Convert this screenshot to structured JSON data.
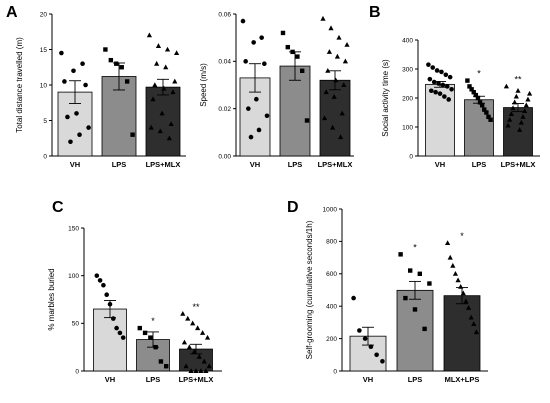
{
  "chart_data": [
    {
      "panel": "A",
      "type": "bar",
      "ylabel": "Total distance travelled (m)",
      "ylim": [
        0,
        20
      ],
      "yticks": [
        0,
        5,
        10,
        15,
        20
      ],
      "categories": [
        "VH",
        "LPS",
        "LPS+MLX"
      ],
      "values": [
        9.0,
        11.2,
        9.7
      ],
      "errors": [
        1.6,
        1.9,
        1.1
      ],
      "significance": [
        "",
        "",
        ""
      ],
      "bar_colors": [
        "#d9d9d9",
        "#8c8c8c",
        "#2e2e2e"
      ],
      "points": [
        [
          14.5,
          13.0,
          12.0,
          10.5,
          10.0,
          6.0,
          5.5,
          4.0,
          3.0,
          2.0
        ],
        [
          15.0,
          13.5,
          13.0,
          12.5,
          10.5,
          3.0
        ],
        [
          17.0,
          15.5,
          15.0,
          14.5,
          13.0,
          12.5,
          10.5,
          10.0,
          9.5,
          9.0,
          8.0,
          6.0,
          4.5,
          4.0,
          3.5,
          2.5
        ]
      ],
      "markers": [
        "circle",
        "square",
        "triangle"
      ]
    },
    {
      "panel": "A",
      "type": "bar",
      "ylabel": "Speed (m/s)",
      "ylim": [
        0,
        0.06
      ],
      "yticks": [
        0,
        0.02,
        0.04,
        0.06
      ],
      "yticklabels": [
        "0.00",
        "0.02",
        "0.04",
        "0.06"
      ],
      "categories": [
        "VH",
        "LPS",
        "LPS+MLX"
      ],
      "values": [
        0.033,
        0.038,
        0.032
      ],
      "errors": [
        0.006,
        0.006,
        0.004
      ],
      "significance": [
        "",
        "",
        ""
      ],
      "bar_colors": [
        "#d9d9d9",
        "#8c8c8c",
        "#2e2e2e"
      ],
      "points": [
        [
          0.057,
          0.05,
          0.048,
          0.04,
          0.039,
          0.024,
          0.02,
          0.017,
          0.011,
          0.008
        ],
        [
          0.052,
          0.046,
          0.044,
          0.042,
          0.036,
          0.015
        ],
        [
          0.058,
          0.054,
          0.05,
          0.047,
          0.044,
          0.042,
          0.04,
          0.036,
          0.032,
          0.03,
          0.027,
          0.025,
          0.018,
          0.016,
          0.012,
          0.008
        ]
      ],
      "markers": [
        "circle",
        "square",
        "triangle"
      ]
    },
    {
      "panel": "B",
      "type": "bar",
      "ylabel": "Social activity time (s)",
      "ylim": [
        0,
        400
      ],
      "yticks": [
        0,
        100,
        200,
        300,
        400
      ],
      "categories": [
        "VH",
        "LPS",
        "LPS+MLX"
      ],
      "values": [
        247,
        194,
        167
      ],
      "errors": [
        10,
        12,
        14
      ],
      "significance": [
        "",
        "*",
        "**"
      ],
      "bar_colors": [
        "#d9d9d9",
        "#8c8c8c",
        "#2e2e2e"
      ],
      "points": [
        [
          315,
          305,
          295,
          290,
          280,
          272,
          265,
          255,
          250,
          245,
          240,
          230,
          225,
          220,
          215,
          205,
          195
        ],
        [
          260,
          240,
          230,
          220,
          210,
          200,
          185,
          175,
          160,
          150,
          135,
          125
        ],
        [
          240,
          225,
          215,
          205,
          195,
          185,
          175,
          165,
          155,
          145,
          135,
          125,
          115,
          105,
          90
        ]
      ],
      "markers": [
        "circle",
        "square",
        "triangle"
      ]
    },
    {
      "panel": "C",
      "type": "bar",
      "ylabel": "% marbles buried",
      "ylim": [
        0,
        150
      ],
      "yticks": [
        0,
        50,
        100,
        150
      ],
      "categories": [
        "VH",
        "LPS",
        "LPS+MLX"
      ],
      "values": [
        65,
        33,
        23
      ],
      "errors": [
        9,
        8,
        5
      ],
      "significance": [
        "",
        "*",
        "**"
      ],
      "bar_colors": [
        "#d9d9d9",
        "#8c8c8c",
        "#2e2e2e"
      ],
      "points": [
        [
          100,
          95,
          90,
          80,
          70,
          55,
          45,
          40,
          35
        ],
        [
          45,
          40,
          35,
          25,
          10,
          5
        ],
        [
          60,
          55,
          50,
          45,
          40,
          35,
          30,
          25,
          20,
          15,
          10,
          5,
          5,
          0,
          0,
          0,
          0
        ]
      ],
      "markers": [
        "circle",
        "square",
        "triangle"
      ]
    },
    {
      "panel": "D",
      "type": "bar",
      "ylabel": "Self-grooming (cumulative seconds/1h)",
      "ylim": [
        0,
        1000
      ],
      "yticks": [
        0,
        200,
        400,
        600,
        800,
        1000
      ],
      "categories": [
        "VH",
        "LPS",
        "MLX+LPS"
      ],
      "values": [
        215,
        498,
        465
      ],
      "errors": [
        55,
        55,
        50
      ],
      "significance": [
        "",
        "*",
        "*"
      ],
      "bar_colors": [
        "#d9d9d9",
        "#8c8c8c",
        "#2e2e2e"
      ],
      "points": [
        [
          450,
          250,
          200,
          150,
          100,
          60
        ],
        [
          720,
          620,
          600,
          540,
          450,
          380,
          260
        ],
        [
          790,
          700,
          650,
          600,
          560,
          520,
          480,
          430,
          390,
          330,
          290,
          240
        ]
      ],
      "markers": [
        "circle",
        "square",
        "triangle"
      ]
    }
  ],
  "panel_letters": [
    "A",
    "B",
    "C",
    "D"
  ]
}
